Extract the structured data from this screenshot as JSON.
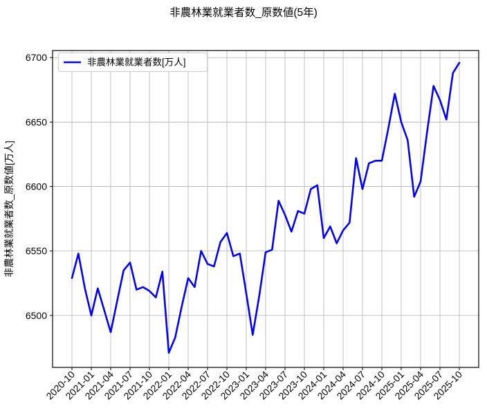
{
  "chart_data": {
    "type": "line",
    "title": "非農林業就業者数_原数値(5年)",
    "ylabel": "非農林業就業者数_原数値[万人]",
    "xlabel": "",
    "legend_entries": [
      "非農林業就業者数[万人]"
    ],
    "legend_position": "upper left",
    "grid": true,
    "line_color": "#0000ff",
    "grid_color": "#b0b0b0",
    "x": [
      "2020-10",
      "2020-11",
      "2020-12",
      "2021-01",
      "2021-02",
      "2021-03",
      "2021-04",
      "2021-05",
      "2021-06",
      "2021-07",
      "2021-08",
      "2021-09",
      "2021-10",
      "2021-11",
      "2021-12",
      "2022-01",
      "2022-02",
      "2022-03",
      "2022-04",
      "2022-05",
      "2022-06",
      "2022-07",
      "2022-08",
      "2022-09",
      "2022-10",
      "2022-11",
      "2022-12",
      "2023-01",
      "2023-02",
      "2023-03",
      "2023-04",
      "2023-05",
      "2023-06",
      "2023-07",
      "2023-08",
      "2023-09",
      "2023-10",
      "2023-11",
      "2023-12",
      "2024-01",
      "2024-02",
      "2024-03",
      "2024-04",
      "2024-05",
      "2024-06",
      "2024-07",
      "2024-08",
      "2024-09",
      "2024-10",
      "2024-11",
      "2024-12",
      "2025-01",
      "2025-02",
      "2025-03",
      "2025-04",
      "2025-05",
      "2025-06",
      "2025-07",
      "2025-08",
      "2025-09",
      "2025-10"
    ],
    "series": [
      {
        "name": "非農林業就業者数[万人]",
        "values": [
          6529,
          6548,
          6521,
          6500,
          6521,
          6504,
          6487,
          6511,
          6535,
          6541,
          6520,
          6522,
          6519,
          6514,
          6534,
          6471,
          6483,
          6507,
          6529,
          6522,
          6550,
          6540,
          6538,
          6557,
          6564,
          6546,
          6548,
          6517,
          6485,
          6515,
          6549,
          6551,
          6589,
          6578,
          6565,
          6581,
          6579,
          6598,
          6601,
          6560,
          6569,
          6556,
          6566,
          6572,
          6622,
          6598,
          6618,
          6620,
          6620,
          6645,
          6672,
          6650,
          6636,
          6592,
          6604,
          6642,
          6678,
          6667,
          6652,
          6688,
          6696
        ]
      }
    ],
    "x_tick_labels": [
      "2020-10",
      "2021-01",
      "2021-04",
      "2021-07",
      "2021-10",
      "2022-01",
      "2022-04",
      "2022-07",
      "2022-10",
      "2023-01",
      "2023-04",
      "2023-07",
      "2023-10",
      "2024-01",
      "2024-04",
      "2024-07",
      "2024-10",
      "2025-01",
      "2025-04",
      "2025-07",
      "2025-10"
    ],
    "x_tick_step": 3,
    "x_tick_rotation": 45,
    "y_ticks": [
      6500,
      6550,
      6600,
      6650,
      6700
    ],
    "ylim": [
      6459.7,
      6705.5
    ],
    "xlim": [
      -3,
      63
    ]
  }
}
